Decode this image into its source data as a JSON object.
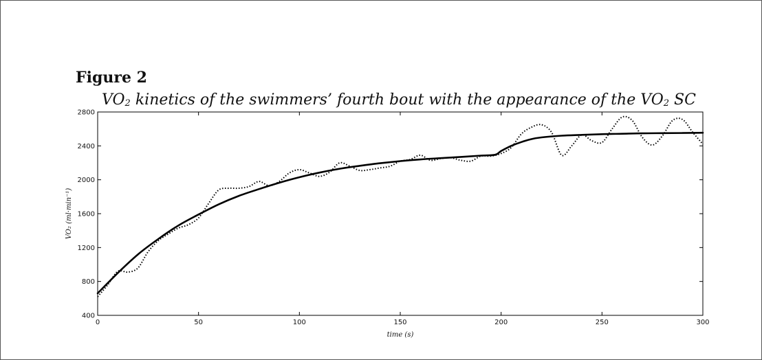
{
  "figure": {
    "label": "Figure 2",
    "caption_parts": [
      "VO",
      "2",
      " kinetics of the swimmers’ fourth bout with the appearance of the VO",
      "2",
      " SC"
    ]
  },
  "chart_data": {
    "type": "line",
    "title": "",
    "xlabel": "time (s)",
    "ylabel": "VO₂ (ml·min⁻¹)",
    "xlim": [
      0,
      300
    ],
    "ylim": [
      400,
      2800
    ],
    "xticks": [
      0,
      50,
      100,
      150,
      200,
      250,
      300
    ],
    "yticks": [
      400,
      800,
      1200,
      1600,
      2000,
      2400,
      2800
    ],
    "grid": false,
    "legend": "none",
    "series": [
      {
        "style": "solid",
        "color": "#000000",
        "x": [
          0,
          10,
          20,
          30,
          40,
          50,
          60,
          70,
          80,
          90,
          100,
          110,
          120,
          130,
          140,
          150,
          160,
          170,
          180,
          190,
          197,
          200,
          205,
          210,
          215,
          220,
          230,
          240,
          250,
          260,
          270,
          280,
          290,
          300
        ],
        "y": [
          660,
          900,
          1120,
          1300,
          1460,
          1590,
          1710,
          1810,
          1890,
          1965,
          2030,
          2085,
          2130,
          2165,
          2195,
          2220,
          2240,
          2255,
          2270,
          2285,
          2295,
          2340,
          2400,
          2445,
          2480,
          2500,
          2520,
          2530,
          2538,
          2543,
          2548,
          2550,
          2552,
          2555
        ]
      },
      {
        "style": "dotted",
        "color": "#000000",
        "x": [
          0,
          5,
          10,
          15,
          20,
          25,
          30,
          35,
          40,
          45,
          50,
          55,
          60,
          65,
          70,
          75,
          80,
          85,
          90,
          95,
          100,
          105,
          110,
          115,
          120,
          125,
          130,
          135,
          140,
          145,
          150,
          155,
          160,
          165,
          170,
          175,
          180,
          185,
          190,
          195,
          200,
          205,
          210,
          215,
          220,
          225,
          230,
          235,
          240,
          245,
          250,
          255,
          260,
          265,
          270,
          275,
          280,
          285,
          290,
          295,
          300
        ],
        "y": [
          620,
          760,
          920,
          910,
          960,
          1150,
          1280,
          1360,
          1430,
          1470,
          1550,
          1720,
          1880,
          1900,
          1900,
          1920,
          1980,
          1930,
          1980,
          2080,
          2120,
          2080,
          2040,
          2090,
          2200,
          2160,
          2110,
          2120,
          2140,
          2160,
          2220,
          2240,
          2290,
          2230,
          2250,
          2260,
          2230,
          2220,
          2280,
          2280,
          2310,
          2380,
          2540,
          2620,
          2650,
          2560,
          2290,
          2400,
          2530,
          2460,
          2440,
          2600,
          2740,
          2700,
          2500,
          2410,
          2520,
          2700,
          2710,
          2560,
          2420
        ]
      }
    ]
  }
}
